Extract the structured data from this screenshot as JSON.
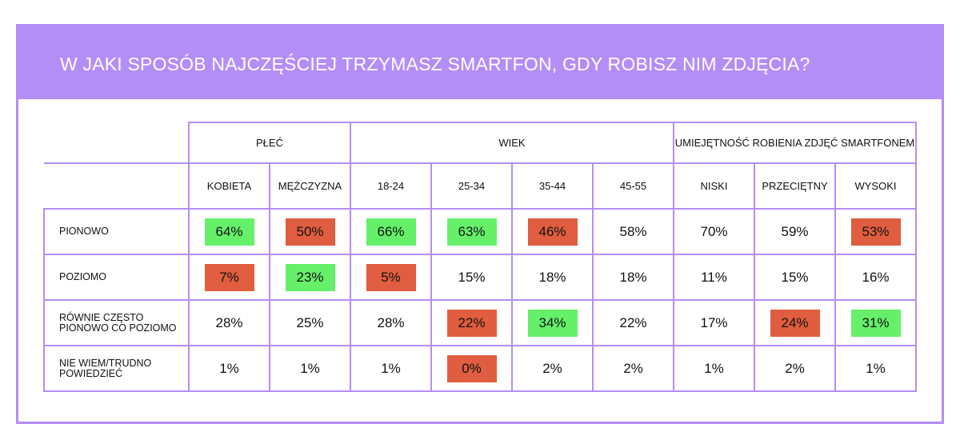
{
  "title": "W JAKI SPOSÓB NAJCZĘŚCIEJ TRZYMASZ SMARTFON, GDY ROBISZ NIM ZDJĘCIA?",
  "colors": {
    "accent": "#b48ef7",
    "high": "#66f06a",
    "low": "#e05d3f",
    "neutral": "transparent"
  },
  "groups": [
    {
      "label": "PŁEĆ",
      "span": 2
    },
    {
      "label": "WIEK",
      "span": 4
    },
    {
      "label": "UMIEJĘTNOŚĆ ROBIENIA ZDJĘĆ SMARTFONEM",
      "span": 3
    }
  ],
  "columns": [
    "KOBIETA",
    "MĘŻCZYZNA",
    "18-24",
    "25-34",
    "35-44",
    "45-55",
    "NISKI",
    "PRZECIĘTNY",
    "WYSOKI"
  ],
  "rows": [
    {
      "label": "PIONOWO",
      "values": [
        "64%",
        "50%",
        "66%",
        "63%",
        "46%",
        "58%",
        "70%",
        "59%",
        "53%"
      ],
      "highlight": [
        "high",
        "low",
        "high",
        "high",
        "low",
        "none",
        "none",
        "none",
        "low"
      ]
    },
    {
      "label": "POZIOMO",
      "values": [
        "7%",
        "23%",
        "5%",
        "15%",
        "18%",
        "18%",
        "11%",
        "15%",
        "16%"
      ],
      "highlight": [
        "low",
        "high",
        "low",
        "none",
        "none",
        "none",
        "none",
        "none",
        "none"
      ]
    },
    {
      "label": "RÓWNIE CZĘSTO PIONOWO CO POZIOMO",
      "values": [
        "28%",
        "25%",
        "28%",
        "22%",
        "34%",
        "22%",
        "17%",
        "24%",
        "31%"
      ],
      "highlight": [
        "none",
        "none",
        "none",
        "low",
        "high",
        "none",
        "none",
        "low",
        "high"
      ]
    },
    {
      "label": "NIE WIEM/TRUDNO POWIEDZIEĆ",
      "values": [
        "1%",
        "1%",
        "1%",
        "0%",
        "2%",
        "2%",
        "1%",
        "2%",
        "1%"
      ],
      "highlight": [
        "none",
        "none",
        "none",
        "low",
        "none",
        "none",
        "none",
        "none",
        "none"
      ]
    }
  ],
  "chart_data": {
    "type": "table",
    "title": "W JAKI SPOSÓB NAJCZĘŚCIEJ TRZYMASZ SMARTFON, GDY ROBISZ NIM ZDJĘCIA?",
    "column_groups": [
      "PŁEĆ",
      "WIEK",
      "UMIEJĘTNOŚĆ ROBIENIA ZDJĘĆ SMARTFONEM"
    ],
    "categories": [
      "KOBIETA",
      "MĘŻCZYZNA",
      "18-24",
      "25-34",
      "35-44",
      "45-55",
      "NISKI",
      "PRZECIĘTNY",
      "WYSOKI"
    ],
    "series": [
      {
        "name": "PIONOWO",
        "values": [
          64,
          50,
          66,
          63,
          46,
          58,
          70,
          59,
          53
        ]
      },
      {
        "name": "POZIOMO",
        "values": [
          7,
          23,
          5,
          15,
          18,
          18,
          11,
          15,
          16
        ]
      },
      {
        "name": "RÓWNIE CZĘSTO PIONOWO CO POZIOMO",
        "values": [
          28,
          25,
          28,
          22,
          34,
          22,
          17,
          24,
          31
        ]
      },
      {
        "name": "NIE WIEM/TRUDNO POWIEDZIEĆ",
        "values": [
          1,
          1,
          1,
          0,
          2,
          2,
          1,
          2,
          1
        ]
      }
    ]
  }
}
